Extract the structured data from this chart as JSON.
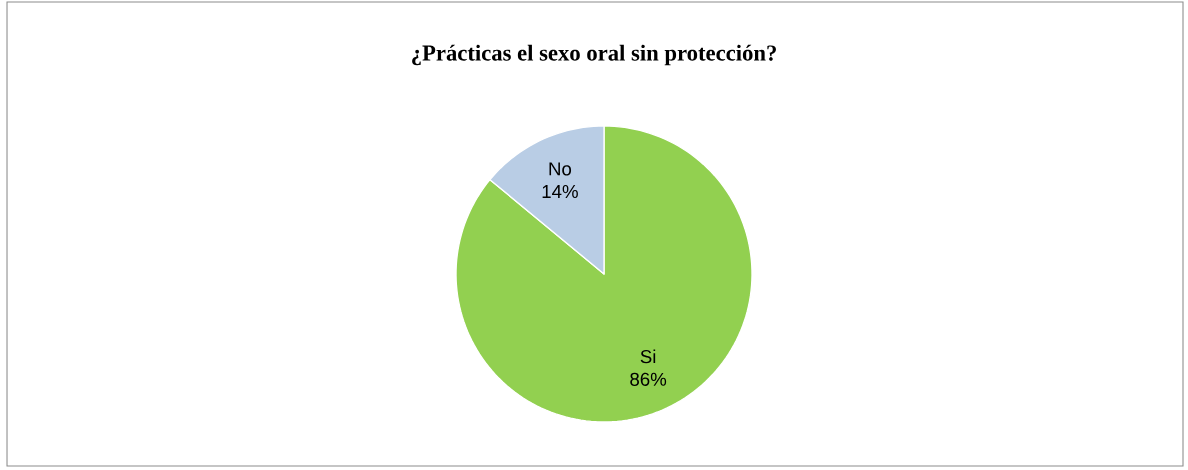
{
  "chart_data": {
    "type": "pie",
    "title": "¿Prácticas el sexo oral sin protección?",
    "categories": [
      "Si",
      "No"
    ],
    "values": [
      86,
      14
    ],
    "colors": [
      "#92d050",
      "#b9cde5"
    ],
    "value_labels": [
      "86%",
      "14%"
    ]
  }
}
